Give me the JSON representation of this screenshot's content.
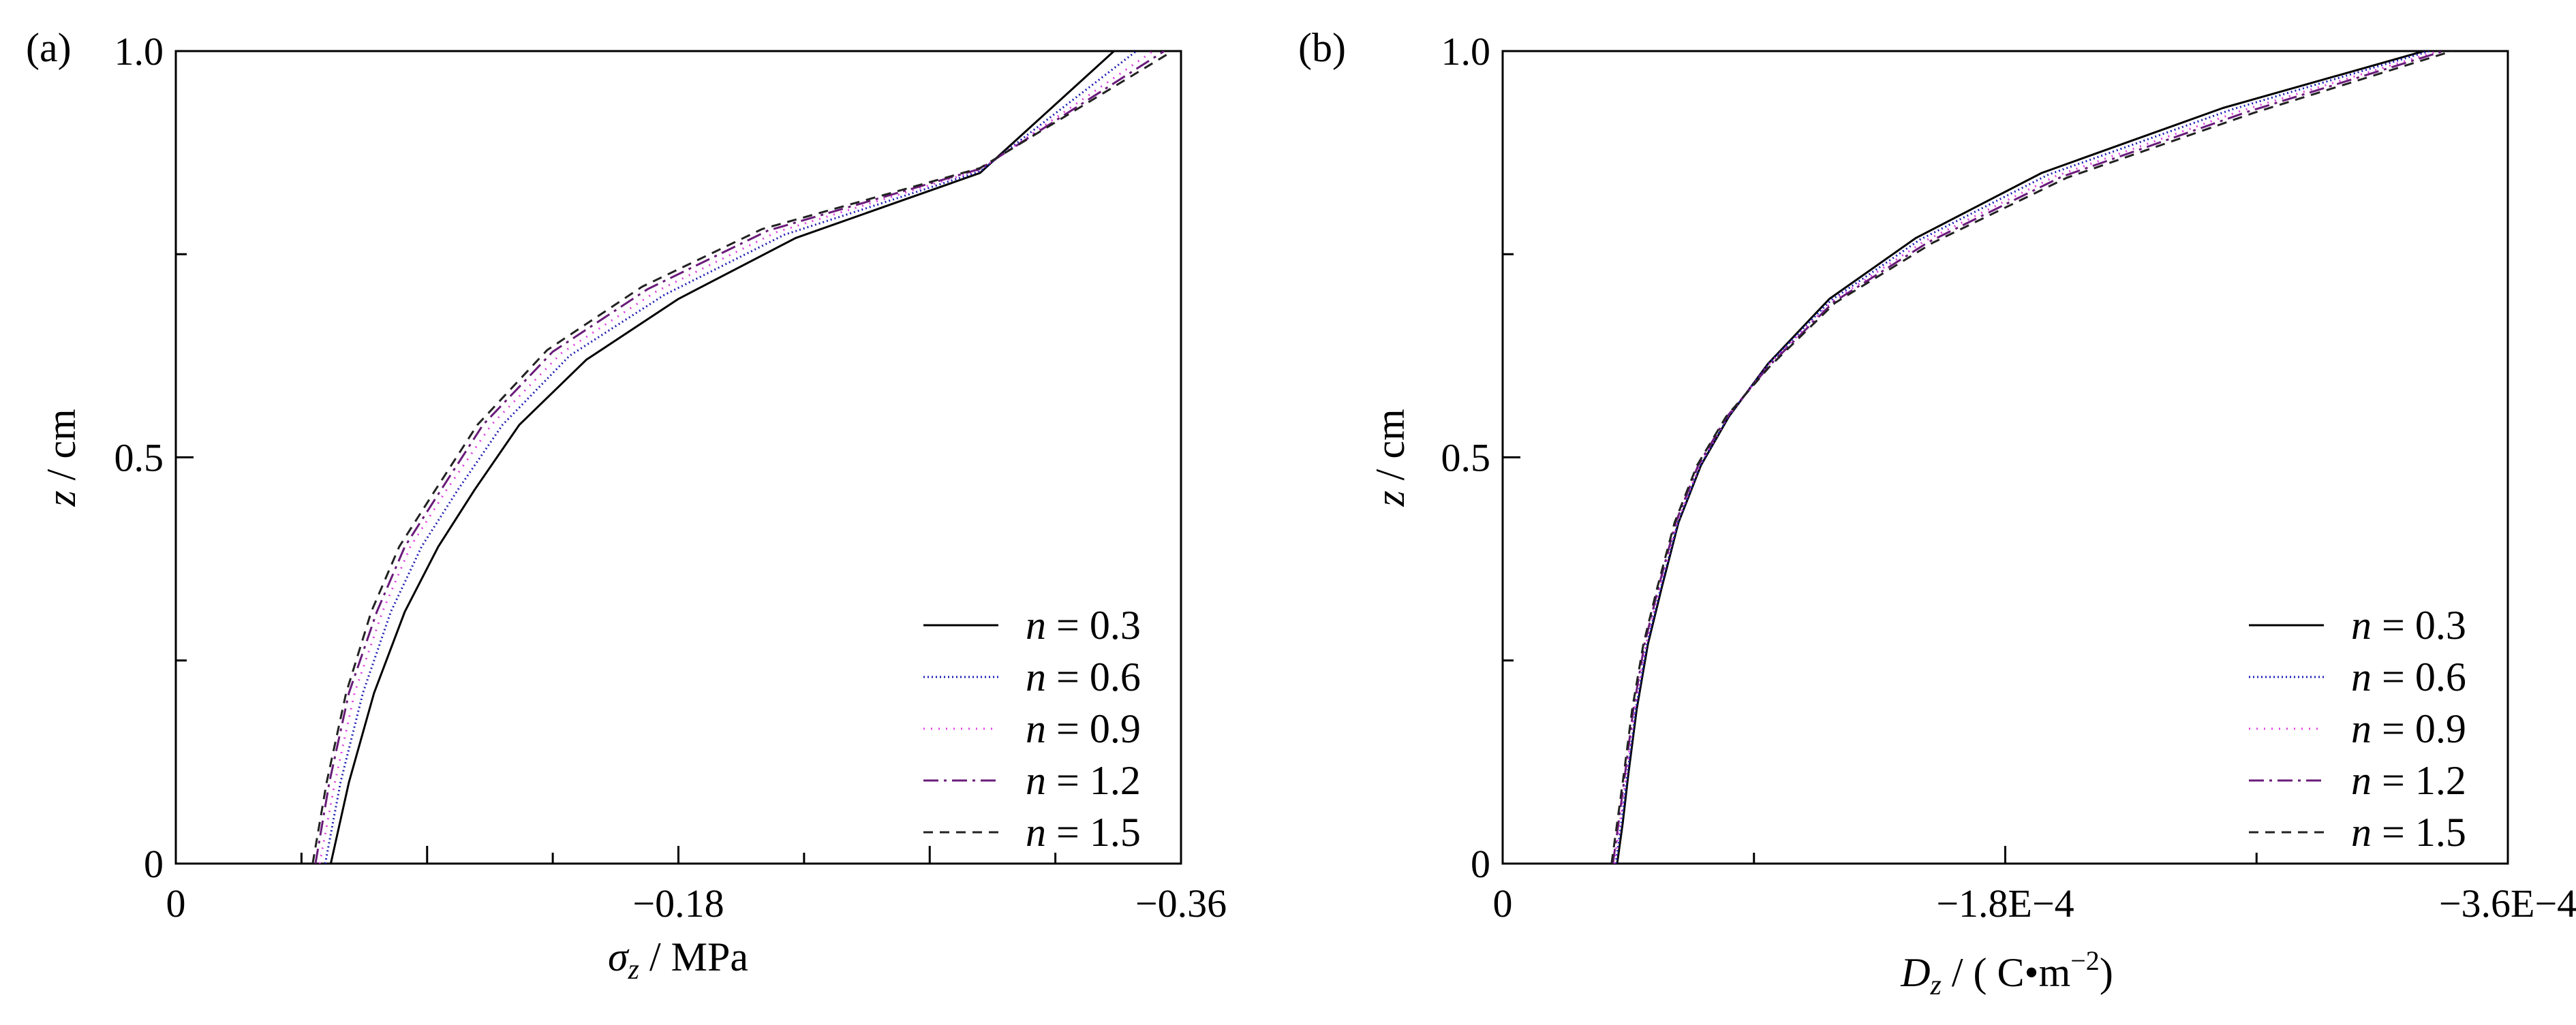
{
  "chart_data": [
    {
      "type": "line",
      "panel": "(a)",
      "xlabel": {
        "symbol": "σ",
        "sub": "z",
        "unit": " / MPa"
      },
      "ylabel": {
        "symbol": "z",
        "unit": " / cm"
      },
      "xlim": [
        0,
        -0.36
      ],
      "ylim": [
        0,
        1.0
      ],
      "xticks": [
        0,
        -0.18,
        -0.36
      ],
      "xtick_labels": [
        "0",
        "−0.18",
        "−0.36"
      ],
      "yticks": [
        0,
        0.5,
        1.0
      ],
      "ytick_labels": [
        "0",
        "0.5",
        "1.0"
      ],
      "x_minor_step": -0.045,
      "y_minor_step": 0.25,
      "legend_position": "bottom-right",
      "series": [
        {
          "name": "n = 0.3",
          "n": "0.3",
          "color": "#000000",
          "dash": "none",
          "points": [
            [
              -0.0555,
              0
            ],
            [
              -0.062,
              0.1
            ],
            [
              -0.071,
              0.21
            ],
            [
              -0.082,
              0.31
            ],
            [
              -0.094,
              0.39
            ],
            [
              -0.107,
              0.46
            ],
            [
              -0.123,
              0.54
            ],
            [
              -0.147,
              0.62
            ],
            [
              -0.18,
              0.695
            ],
            [
              -0.222,
              0.77
            ],
            [
              -0.288,
              0.85
            ],
            [
              -0.336,
              1.0
            ]
          ]
        },
        {
          "name": "n = 0.6",
          "n": "0.6",
          "color": "#1f1fb4",
          "dash": "2,4",
          "points": [
            [
              -0.0535,
              0
            ],
            [
              -0.059,
              0.1
            ],
            [
              -0.067,
              0.21
            ],
            [
              -0.077,
              0.31
            ],
            [
              -0.088,
              0.39
            ],
            [
              -0.101,
              0.46
            ],
            [
              -0.117,
              0.54
            ],
            [
              -0.141,
              0.625
            ],
            [
              -0.175,
              0.7
            ],
            [
              -0.218,
              0.774
            ],
            [
              -0.288,
              0.852
            ],
            [
              -0.344,
              1.0
            ]
          ]
        },
        {
          "name": "n = 0.9",
          "n": "0.9",
          "color": "#e040e0",
          "dash": "2,9",
          "points": [
            [
              -0.0515,
              0
            ],
            [
              -0.057,
              0.1
            ],
            [
              -0.064,
              0.21
            ],
            [
              -0.074,
              0.31
            ],
            [
              -0.084,
              0.39
            ],
            [
              -0.097,
              0.46
            ],
            [
              -0.113,
              0.54
            ],
            [
              -0.138,
              0.628
            ],
            [
              -0.172,
              0.704
            ],
            [
              -0.215,
              0.777
            ],
            [
              -0.288,
              0.854
            ],
            [
              -0.35,
              1.0
            ]
          ]
        },
        {
          "name": "n = 1.2",
          "n": "1.2",
          "color": "#6a1b7a",
          "dash": "22,8,4,8",
          "points": [
            [
              -0.05,
              0
            ],
            [
              -0.055,
              0.1
            ],
            [
              -0.062,
              0.21
            ],
            [
              -0.072,
              0.31
            ],
            [
              -0.082,
              0.39
            ],
            [
              -0.095,
              0.46
            ],
            [
              -0.11,
              0.54
            ],
            [
              -0.135,
              0.63
            ],
            [
              -0.169,
              0.707
            ],
            [
              -0.212,
              0.779
            ],
            [
              -0.288,
              0.855
            ],
            [
              -0.354,
              1.0
            ]
          ]
        },
        {
          "name": "n = 1.5",
          "n": "1.5",
          "color": "#222222",
          "dash": "14,10",
          "points": [
            [
              -0.049,
              0
            ],
            [
              -0.054,
              0.1
            ],
            [
              -0.061,
              0.21
            ],
            [
              -0.07,
              0.31
            ],
            [
              -0.08,
              0.39
            ],
            [
              -0.093,
              0.46
            ],
            [
              -0.108,
              0.54
            ],
            [
              -0.133,
              0.632
            ],
            [
              -0.167,
              0.71
            ],
            [
              -0.21,
              0.781
            ],
            [
              -0.288,
              0.856
            ],
            [
              -0.357,
              1.0
            ]
          ]
        }
      ]
    },
    {
      "type": "line",
      "panel": "(b)",
      "xlabel": {
        "symbol": "D",
        "sub": "z",
        "unit": " / ( C•m",
        "sup": "−2",
        "unit_end": ")"
      },
      "ylabel": {
        "symbol": "z",
        "unit": " / cm"
      },
      "xlim": [
        0,
        -0.00036
      ],
      "ylim": [
        0,
        1.0
      ],
      "xticks": [
        0,
        -0.00018,
        -0.00036
      ],
      "xtick_labels": [
        "0",
        "−1.8E−4",
        "−3.6E−4"
      ],
      "yticks": [
        0,
        0.5,
        1.0
      ],
      "ytick_labels": [
        "0",
        "0.5",
        "1.0"
      ],
      "x_minor_step": -9e-05,
      "y_minor_step": 0.25,
      "legend_position": "bottom-right",
      "series": [
        {
          "name": "n = 0.3",
          "n": "0.3",
          "color": "#000000",
          "dash": "none",
          "points": [
            [
              -4.1e-05,
              0
            ],
            [
              -4.3e-05,
              0.05
            ],
            [
              -4.5e-05,
              0.11
            ],
            [
              -4.8e-05,
              0.19
            ],
            [
              -5.2e-05,
              0.27
            ],
            [
              -5.7e-05,
              0.34
            ],
            [
              -6.3e-05,
              0.42
            ],
            [
              -7.1e-05,
              0.49
            ],
            [
              -8.1e-05,
              0.55
            ],
            [
              -9.5e-05,
              0.615
            ],
            [
              -0.000117,
              0.695
            ],
            [
              -0.000148,
              0.77
            ],
            [
              -0.000193,
              0.85
            ],
            [
              -0.000258,
              0.93
            ],
            [
              -0.00033,
              1.0
            ]
          ]
        },
        {
          "name": "n = 0.6",
          "n": "0.6",
          "color": "#1f1fb4",
          "dash": "2,4",
          "points": [
            [
              -4.05e-05,
              0
            ],
            [
              -4.25e-05,
              0.05
            ],
            [
              -4.47e-05,
              0.11
            ],
            [
              -4.77e-05,
              0.19
            ],
            [
              -5.17e-05,
              0.27
            ],
            [
              -5.67e-05,
              0.34
            ],
            [
              -6.28e-05,
              0.42
            ],
            [
              -7.08e-05,
              0.49
            ],
            [
              -8.08e-05,
              0.55
            ],
            [
              -9.52e-05,
              0.615
            ],
            [
              -0.0001175,
              0.693
            ],
            [
              -0.0001495,
              0.768
            ],
            [
              -0.0001955,
              0.848
            ],
            [
              -0.000261,
              0.928
            ],
            [
              -0.000332,
              1.0
            ]
          ]
        },
        {
          "name": "n = 0.9",
          "n": "0.9",
          "color": "#e040e0",
          "dash": "2,9",
          "points": [
            [
              -4e-05,
              0
            ],
            [
              -4.2e-05,
              0.05
            ],
            [
              -4.43e-05,
              0.11
            ],
            [
              -4.73e-05,
              0.19
            ],
            [
              -5.13e-05,
              0.27
            ],
            [
              -5.63e-05,
              0.34
            ],
            [
              -6.25e-05,
              0.42
            ],
            [
              -7.05e-05,
              0.49
            ],
            [
              -8.06e-05,
              0.55
            ],
            [
              -9.53e-05,
              0.614
            ],
            [
              -0.000118,
              0.692
            ],
            [
              -0.000151,
              0.766
            ],
            [
              -0.000198,
              0.846
            ],
            [
              -0.000264,
              0.926
            ],
            [
              -0.000335,
              1.0
            ]
          ]
        },
        {
          "name": "n = 1.2",
          "n": "1.2",
          "color": "#6a1b7a",
          "dash": "22,8,4,8",
          "points": [
            [
              -3.95e-05,
              0
            ],
            [
              -4.15e-05,
              0.05
            ],
            [
              -4.38e-05,
              0.11
            ],
            [
              -4.68e-05,
              0.19
            ],
            [
              -5.08e-05,
              0.27
            ],
            [
              -5.58e-05,
              0.34
            ],
            [
              -6.2e-05,
              0.42
            ],
            [
              -7e-05,
              0.49
            ],
            [
              -8.03e-05,
              0.55
            ],
            [
              -9.55e-05,
              0.613
            ],
            [
              -0.0001185,
              0.691
            ],
            [
              -0.0001525,
              0.765
            ],
            [
              -0.0002,
              0.845
            ],
            [
              -0.0002665,
              0.925
            ],
            [
              -0.000337,
              1.0
            ]
          ]
        },
        {
          "name": "n = 1.5",
          "n": "1.5",
          "color": "#222222",
          "dash": "14,10",
          "points": [
            [
              -3.9e-05,
              0
            ],
            [
              -4.1e-05,
              0.05
            ],
            [
              -4.34e-05,
              0.11
            ],
            [
              -4.64e-05,
              0.19
            ],
            [
              -5.04e-05,
              0.27
            ],
            [
              -5.54e-05,
              0.34
            ],
            [
              -6.16e-05,
              0.42
            ],
            [
              -6.96e-05,
              0.49
            ],
            [
              -8e-05,
              0.55
            ],
            [
              -9.57e-05,
              0.612
            ],
            [
              -0.000119,
              0.69
            ],
            [
              -0.000154,
              0.764
            ],
            [
              -0.000202,
              0.844
            ],
            [
              -0.000269,
              0.924
            ],
            [
              -0.00034,
              1.0
            ]
          ]
        }
      ]
    }
  ]
}
